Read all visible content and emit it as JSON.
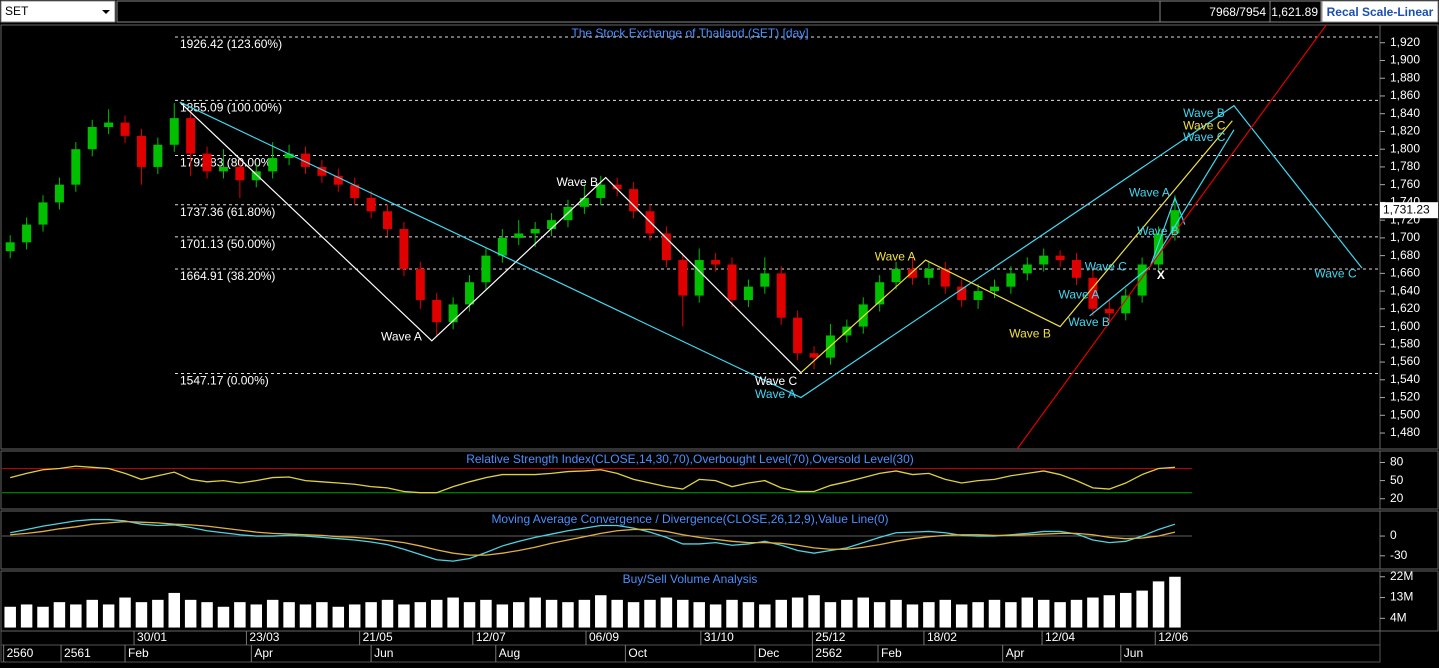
{
  "toolbar": {
    "symbol": "SET",
    "quote_count": "7968/7954",
    "price": "1,621.89",
    "button": "Recal Scale-Linear"
  },
  "chart_data": [
    {
      "type": "candlestick",
      "title": "The Stock Exchange of Thailand (SET) [day]",
      "xlim": [
        0,
        84
      ],
      "ylim": [
        1462,
        1940
      ],
      "yticks": [
        {
          "value": 1480,
          "label": "1,480"
        },
        {
          "value": 1500,
          "label": "1,500"
        },
        {
          "value": 1520,
          "label": "1,520"
        },
        {
          "value": 1540,
          "label": "1,540"
        },
        {
          "value": 1560,
          "label": "1,560"
        },
        {
          "value": 1580,
          "label": "1,580"
        },
        {
          "value": 1600,
          "label": "1,600"
        },
        {
          "value": 1620,
          "label": "1,620"
        },
        {
          "value": 1640,
          "label": "1,640"
        },
        {
          "value": 1660,
          "label": "1,660"
        },
        {
          "value": 1680,
          "label": "1,680"
        },
        {
          "value": 1700,
          "label": "1,700"
        },
        {
          "value": 1720,
          "label": "1,720"
        },
        {
          "value": 1740,
          "label": "1,740"
        },
        {
          "value": 1760,
          "label": "1,760"
        },
        {
          "value": 1780,
          "label": "1,780"
        },
        {
          "value": 1800,
          "label": "1,800"
        },
        {
          "value": 1820,
          "label": "1,820"
        },
        {
          "value": 1840,
          "label": "1,840"
        },
        {
          "value": 1860,
          "label": "1,860"
        },
        {
          "value": 1880,
          "label": "1,880"
        },
        {
          "value": 1900,
          "label": "1,900"
        },
        {
          "value": 1920,
          "label": "1,920"
        }
      ],
      "up_color": "#00c000",
      "down_color": "#e00000",
      "open": [
        1685,
        1695,
        1715,
        1740,
        1760,
        1800,
        1825,
        1830,
        1815,
        1780,
        1805,
        1835,
        1795,
        1775,
        1780,
        1765,
        1775,
        1790,
        1795,
        1780,
        1770,
        1760,
        1745,
        1730,
        1710,
        1665,
        1630,
        1605,
        1625,
        1650,
        1680,
        1700,
        1705,
        1710,
        1720,
        1735,
        1745,
        1760,
        1755,
        1730,
        1705,
        1675,
        1635,
        1675,
        1670,
        1630,
        1645,
        1660,
        1610,
        1570,
        1565,
        1590,
        1600,
        1625,
        1650,
        1665,
        1655,
        1665,
        1645,
        1630,
        1640,
        1645,
        1660,
        1670,
        1680,
        1675,
        1655,
        1620,
        1615,
        1635,
        1670,
        1705
      ],
      "high": [
        1703,
        1723,
        1748,
        1768,
        1808,
        1833,
        1845,
        1838,
        1823,
        1813,
        1852,
        1843,
        1803,
        1800,
        1788,
        1783,
        1808,
        1805,
        1803,
        1788,
        1778,
        1768,
        1753,
        1738,
        1718,
        1673,
        1638,
        1633,
        1658,
        1688,
        1710,
        1720,
        1718,
        1728,
        1743,
        1760,
        1770,
        1768,
        1763,
        1738,
        1713,
        1683,
        1688,
        1683,
        1678,
        1653,
        1678,
        1668,
        1618,
        1578,
        1603,
        1608,
        1633,
        1658,
        1673,
        1678,
        1673,
        1673,
        1653,
        1648,
        1653,
        1668,
        1678,
        1688,
        1686,
        1683,
        1663,
        1630,
        1643,
        1678,
        1713,
        1748
      ],
      "low": [
        1677,
        1687,
        1707,
        1732,
        1752,
        1792,
        1817,
        1807,
        1760,
        1772,
        1797,
        1770,
        1767,
        1767,
        1745,
        1757,
        1767,
        1782,
        1772,
        1762,
        1752,
        1737,
        1722,
        1702,
        1657,
        1620,
        1590,
        1597,
        1617,
        1642,
        1672,
        1692,
        1690,
        1702,
        1712,
        1727,
        1737,
        1747,
        1722,
        1697,
        1667,
        1600,
        1627,
        1662,
        1622,
        1622,
        1637,
        1602,
        1562,
        1552,
        1557,
        1582,
        1592,
        1617,
        1642,
        1647,
        1647,
        1637,
        1622,
        1620,
        1632,
        1637,
        1652,
        1662,
        1667,
        1647,
        1612,
        1605,
        1607,
        1627,
        1662,
        1697
      ],
      "close": [
        1695,
        1715,
        1740,
        1760,
        1800,
        1825,
        1830,
        1815,
        1780,
        1805,
        1835,
        1795,
        1775,
        1780,
        1765,
        1775,
        1790,
        1795,
        1780,
        1770,
        1760,
        1745,
        1730,
        1710,
        1665,
        1630,
        1605,
        1625,
        1650,
        1680,
        1700,
        1705,
        1710,
        1720,
        1735,
        1745,
        1760,
        1755,
        1730,
        1705,
        1675,
        1635,
        1675,
        1670,
        1630,
        1645,
        1660,
        1610,
        1570,
        1565,
        1590,
        1600,
        1625,
        1650,
        1665,
        1655,
        1665,
        1645,
        1630,
        1640,
        1645,
        1660,
        1670,
        1680,
        1675,
        1655,
        1620,
        1615,
        1635,
        1670,
        1705,
        1731.23
      ],
      "last_price": {
        "value": 1731.23,
        "label": "1,731.23"
      },
      "fib_levels": [
        {
          "value": 1926.42,
          "label": "1926.42 (123.60%)"
        },
        {
          "value": 1855.09,
          "label": "1855.09 (100.00%)"
        },
        {
          "value": 1792.83,
          "label": "1792.83 (80.00%)"
        },
        {
          "value": 1737.36,
          "label": "1737.36 (61.80%)"
        },
        {
          "value": 1701.13,
          "label": "1701.13 (50.00%)"
        },
        {
          "value": 1664.91,
          "label": "1664.91 (38.20%)"
        },
        {
          "value": 1547.17,
          "label": "1547.17 (0.00%)"
        }
      ],
      "wave_lines": [
        {
          "color": "#ffffff",
          "x": [
            10.85,
            26.2,
            36.8,
            48.7
          ],
          "y": [
            1853,
            1584,
            1768,
            1548
          ]
        },
        {
          "color": "#40d8f0",
          "x": [
            10.85,
            48.7,
            75.1,
            82.9
          ],
          "y": [
            1853,
            1520,
            1849,
            1666
          ]
        },
        {
          "color": "#f0e040",
          "x": [
            48.7,
            56.3,
            64.5,
            75
          ],
          "y": [
            1548,
            1675,
            1600,
            1832
          ]
        },
        {
          "color": "#40d8f0",
          "x": [
            66.3,
            70,
            75.1
          ],
          "y": [
            1612,
            1668,
            1822
          ]
        },
        {
          "color": "#40d8f0",
          "x": [
            70,
            71.5,
            72.1
          ],
          "y": [
            1668,
            1745,
            1715
          ]
        },
        {
          "color": "#e00000",
          "x": [
            61.8,
            81.9
          ],
          "y": [
            1460,
            1970
          ]
        }
      ],
      "wave_labels": [
        {
          "text": "Wave A",
          "color": "#ffffff",
          "x": 23.1,
          "y": 1588
        },
        {
          "text": "Wave B",
          "color": "#ffffff",
          "x": 33.8,
          "y": 1762
        },
        {
          "text": "Wave C",
          "color": "#ffffff",
          "x": 45.9,
          "y": 1538
        },
        {
          "text": "Wave A",
          "color": "#40d8f0",
          "x": 45.9,
          "y": 1523
        },
        {
          "text": "Wave A",
          "color": "#f0e040",
          "x": 53.2,
          "y": 1678
        },
        {
          "text": "Wave B",
          "color": "#f0e040",
          "x": 61.4,
          "y": 1591
        },
        {
          "text": "Wave A",
          "color": "#40d8f0",
          "x": 64.4,
          "y": 1635
        },
        {
          "text": "Wave B",
          "color": "#40d8f0",
          "x": 65.0,
          "y": 1604
        },
        {
          "text": "Wave C",
          "color": "#40d8f0",
          "x": 66.0,
          "y": 1667
        },
        {
          "text": "Wave A",
          "color": "#40d8f0",
          "x": 68.7,
          "y": 1750
        },
        {
          "text": "Wave B",
          "color": "#40d8f0",
          "x": 69.2,
          "y": 1707
        },
        {
          "text": "Wave B",
          "color": "#40d8f0",
          "x": 72.0,
          "y": 1840
        },
        {
          "text": "Wave C",
          "color": "#f0e040",
          "x": 72.0,
          "y": 1826
        },
        {
          "text": "Wave C",
          "color": "#40d8f0",
          "x": 72.0,
          "y": 1813
        },
        {
          "text": "Wave C",
          "color": "#40d8f0",
          "x": 80.0,
          "y": 1659
        },
        {
          "text": "X",
          "color": "#ffffff",
          "x": 70.4,
          "y": 1657
        }
      ]
    },
    {
      "type": "line",
      "title": "Relative Strength Index(CLOSE,14,30,70),Overbought Level(70),Oversold Level(30)",
      "xlim": [
        0,
        84
      ],
      "ylim": [
        3,
        99
      ],
      "yticks": [
        20,
        50,
        80
      ],
      "levels": [
        {
          "value": 70,
          "color": "#c00000"
        },
        {
          "value": 30,
          "color": "#00a000"
        }
      ],
      "series": [
        {
          "color": "#e0d040",
          "values": [
            55,
            62,
            68,
            70,
            74,
            72,
            70,
            62,
            52,
            58,
            64,
            52,
            48,
            50,
            46,
            50,
            55,
            56,
            50,
            48,
            46,
            44,
            40,
            38,
            32,
            30,
            30,
            40,
            48,
            55,
            60,
            60,
            60,
            62,
            65,
            66,
            68,
            62,
            52,
            46,
            40,
            36,
            52,
            50,
            40,
            46,
            50,
            38,
            32,
            32,
            42,
            48,
            55,
            62,
            66,
            60,
            62,
            52,
            46,
            50,
            52,
            58,
            62,
            66,
            60,
            50,
            38,
            36,
            46,
            60,
            70,
            72
          ]
        }
      ]
    },
    {
      "type": "line",
      "title": "Moving Average Convergence / Divergence(CLOSE,26,12,9),Value Line(0)",
      "xlim": [
        0,
        84
      ],
      "ylim": [
        -50,
        38
      ],
      "yticks": [
        -30,
        0
      ],
      "levels": [
        {
          "value": 0,
          "color": "#606060"
        }
      ],
      "series": [
        {
          "color": "#4fd1e0",
          "values": [
            5,
            10,
            15,
            19,
            23,
            25,
            25,
            23,
            18,
            16,
            17,
            13,
            8,
            5,
            2,
            0,
            0,
            1,
            0,
            -2,
            -4,
            -6,
            -9,
            -13,
            -20,
            -28,
            -36,
            -38,
            -34,
            -25,
            -15,
            -8,
            -2,
            3,
            8,
            12,
            16,
            16,
            12,
            6,
            -2,
            -12,
            -12,
            -10,
            -14,
            -12,
            -8,
            -14,
            -22,
            -26,
            -22,
            -18,
            -10,
            -2,
            5,
            6,
            7,
            5,
            1,
            0,
            0,
            2,
            4,
            7,
            7,
            3,
            -6,
            -10,
            -8,
            0,
            10,
            18
          ]
        },
        {
          "color": "#e0b040",
          "values": [
            2,
            4,
            7,
            11,
            14,
            18,
            20,
            22,
            21,
            20,
            18,
            17,
            15,
            12,
            9,
            6,
            4,
            3,
            2,
            1,
            -1,
            -2,
            -4,
            -7,
            -10,
            -15,
            -21,
            -26,
            -29,
            -29,
            -26,
            -22,
            -17,
            -11,
            -6,
            -1,
            4,
            8,
            10,
            10,
            7,
            2,
            -2,
            -5,
            -8,
            -10,
            -10,
            -11,
            -14,
            -18,
            -20,
            -20,
            -17,
            -13,
            -8,
            -4,
            -1,
            1,
            2,
            2,
            1,
            1,
            2,
            3,
            4,
            4,
            2,
            -2,
            -4,
            -3,
            0,
            6
          ]
        }
      ]
    },
    {
      "type": "bar",
      "title": "Buy/Sell Volume Analysis",
      "xlim": [
        0,
        84
      ],
      "ylim": [
        -1.5,
        24.5
      ],
      "color": "#ffffff",
      "yticks": [
        {
          "value": 4,
          "label": "4M"
        },
        {
          "value": 13,
          "label": "13M"
        },
        {
          "value": 22,
          "label": "22M"
        }
      ],
      "values": [
        9,
        10,
        9,
        11,
        10,
        12,
        10,
        13,
        11,
        12,
        15,
        12,
        11,
        9,
        11,
        10,
        12,
        11,
        10,
        11,
        9,
        10,
        11,
        12,
        10,
        11,
        12,
        13,
        11,
        12,
        10,
        11,
        13,
        12,
        11,
        12,
        14,
        12,
        11,
        12,
        13,
        12,
        11,
        10,
        12,
        11,
        10,
        12,
        13,
        14,
        11,
        12,
        13,
        11,
        12,
        10,
        11,
        12,
        10,
        11,
        12,
        11,
        13,
        12,
        11,
        12,
        13,
        14,
        15,
        16,
        20,
        22
      ],
      "xticks": [
        {
          "value": 8.05,
          "label": "30/01"
        },
        {
          "value": 14.9,
          "label": "23/03"
        },
        {
          "value": 21.8,
          "label": "21/05"
        },
        {
          "value": 28.7,
          "label": "12/07"
        },
        {
          "value": 35.6,
          "label": "06/09"
        },
        {
          "value": 42.6,
          "label": "31/10"
        },
        {
          "value": 49.4,
          "label": "25/12"
        },
        {
          "value": 56.2,
          "label": "18/02"
        },
        {
          "value": 63.4,
          "label": "12/04"
        },
        {
          "value": 70.3,
          "label": "12/06"
        }
      ],
      "xticks2": [
        {
          "value": 0.1,
          "label": "2560"
        },
        {
          "value": 3.6,
          "label": "2561"
        },
        {
          "value": 7.5,
          "label": "Feb"
        },
        {
          "value": 15.2,
          "label": "Apr"
        },
        {
          "value": 22.5,
          "label": "Jun"
        },
        {
          "value": 30.1,
          "label": "Aug"
        },
        {
          "value": 38.0,
          "label": "Oct"
        },
        {
          "value": 45.9,
          "label": "Dec"
        },
        {
          "value": 49.4,
          "label": "2562"
        },
        {
          "value": 53.4,
          "label": "Feb"
        },
        {
          "value": 61.0,
          "label": "Apr"
        },
        {
          "value": 68.2,
          "label": "Jun"
        }
      ]
    }
  ]
}
